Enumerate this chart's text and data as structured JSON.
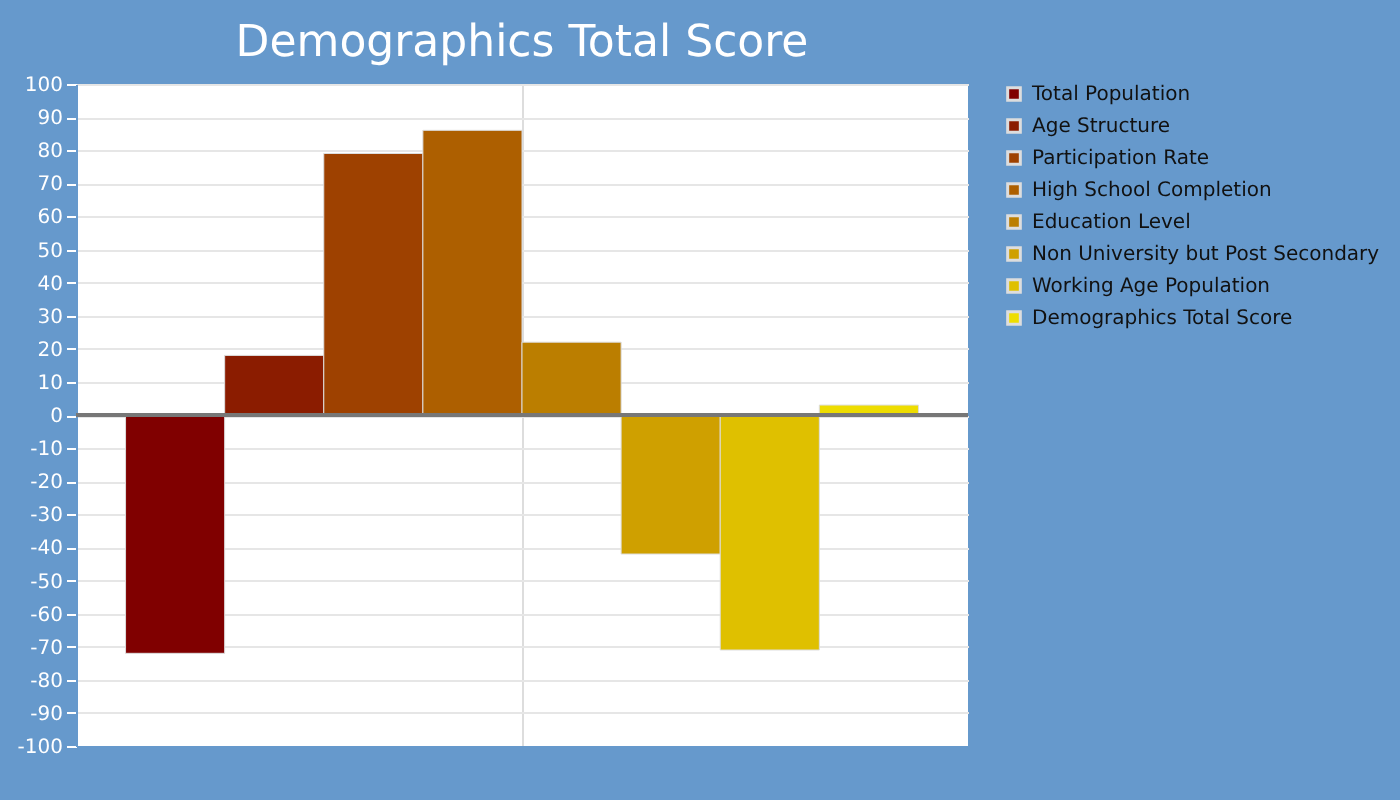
{
  "chart_data": {
    "type": "bar",
    "title": "Demographics Total Score",
    "categories": [
      null
    ],
    "series": [
      {
        "name": "Total Population",
        "color": "#800000",
        "values": [
          -72
        ]
      },
      {
        "name": "Age Structure",
        "color": "#8b1c00",
        "values": [
          18
        ]
      },
      {
        "name": "Participation Rate",
        "color": "#9e4100",
        "values": [
          79
        ]
      },
      {
        "name": "High School Completion",
        "color": "#ad5f00",
        "values": [
          86
        ]
      },
      {
        "name": "Education Level",
        "color": "#bb7e00",
        "values": [
          22
        ]
      },
      {
        "name": "Non University but Post Secondary",
        "color": "#cfa000",
        "values": [
          -42
        ]
      },
      {
        "name": "Working Age Population",
        "color": "#dfc000",
        "values": [
          -71
        ]
      },
      {
        "name": "Demographics Total Score",
        "color": "#eedd00",
        "values": [
          3
        ]
      }
    ],
    "ylim": [
      -100,
      100
    ],
    "yticks": [
      -100,
      -90,
      -80,
      -70,
      -60,
      -50,
      -40,
      -30,
      -20,
      -10,
      0,
      10,
      20,
      30,
      40,
      50,
      60,
      70,
      80,
      90,
      100
    ],
    "ref_lines": [
      {
        "axis": "y",
        "value": 0,
        "color": "#777777"
      }
    ],
    "grid": true,
    "legend": "right"
  }
}
